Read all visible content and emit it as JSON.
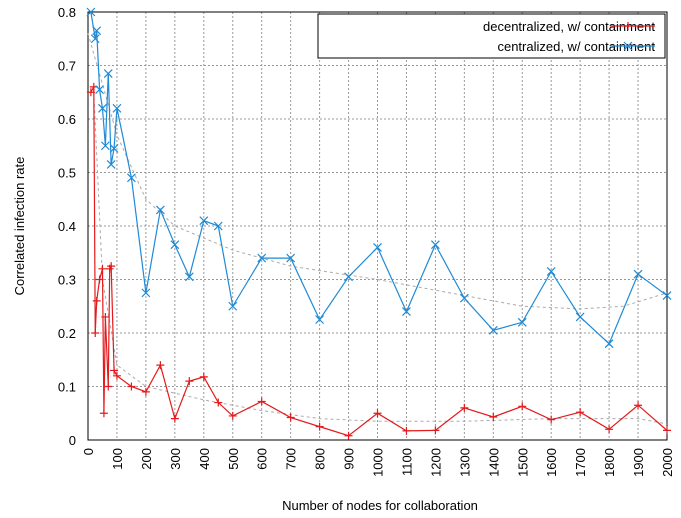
{
  "chart_data": {
    "type": "line",
    "xlabel": "Number of nodes for collaboration",
    "ylabel": "Correlated infection rate",
    "xlim": [
      0,
      2000
    ],
    "xticks": [
      0,
      100,
      200,
      300,
      400,
      500,
      600,
      700,
      800,
      900,
      1000,
      1100,
      1200,
      1300,
      1400,
      1500,
      1600,
      1700,
      1800,
      1900,
      2000
    ],
    "ylim": [
      0,
      0.8
    ],
    "yticks": [
      0,
      0.1,
      0.2,
      0.3,
      0.4,
      0.5,
      0.6,
      0.7,
      0.8
    ],
    "grid": true,
    "legend": "upper right",
    "series": [
      {
        "name": "decentralized, w/ containment",
        "color": "#e41a1c",
        "marker": "+",
        "x": [
          10,
          20,
          25,
          30,
          40,
          50,
          55,
          60,
          70,
          75,
          80,
          90,
          100,
          150,
          200,
          250,
          300,
          350,
          400,
          450,
          500,
          600,
          700,
          800,
          900,
          1000,
          1100,
          1200,
          1300,
          1400,
          1500,
          1600,
          1700,
          1800,
          1900,
          2000
        ],
        "values": [
          0.65,
          0.66,
          0.2,
          0.26,
          0.3,
          0.32,
          0.05,
          0.23,
          0.1,
          0.32,
          0.325,
          0.13,
          0.12,
          0.1,
          0.09,
          0.14,
          0.04,
          0.11,
          0.118,
          0.07,
          0.045,
          0.072,
          0.042,
          0.025,
          0.008,
          0.05,
          0.017,
          0.018,
          0.06,
          0.043,
          0.063,
          0.038,
          0.052,
          0.02,
          0.065,
          0.018
        ]
      },
      {
        "name": "centralized, w/ containment",
        "color": "#1f8ad6",
        "marker": "x",
        "x": [
          10,
          25,
          30,
          40,
          50,
          60,
          70,
          80,
          90,
          100,
          150,
          200,
          250,
          300,
          350,
          400,
          450,
          500,
          600,
          700,
          800,
          900,
          1000,
          1100,
          1200,
          1300,
          1400,
          1500,
          1600,
          1700,
          1800,
          1900,
          2000
        ],
        "values": [
          0.8,
          0.75,
          0.765,
          0.655,
          0.62,
          0.55,
          0.685,
          0.515,
          0.545,
          0.62,
          0.49,
          0.275,
          0.43,
          0.365,
          0.305,
          0.41,
          0.4,
          0.25,
          0.34,
          0.34,
          0.225,
          0.305,
          0.36,
          0.24,
          0.365,
          0.265,
          0.205,
          0.22,
          0.315,
          0.23,
          0.18,
          0.31,
          0.27
        ]
      }
    ],
    "trendlines": [
      {
        "color": "#aaaaaa",
        "x": [
          20,
          50,
          100,
          200,
          400,
          600,
          800,
          1000,
          1300,
          1600,
          1900,
          2000
        ],
        "values": [
          0.65,
          0.3,
          0.14,
          0.1,
          0.075,
          0.055,
          0.04,
          0.035,
          0.035,
          0.04,
          0.04,
          0.03
        ]
      },
      {
        "color": "#aaaaaa",
        "x": [
          0,
          100,
          200,
          300,
          500,
          700,
          1000,
          1300,
          1500,
          1700,
          1850,
          2000
        ],
        "values": [
          0.76,
          0.57,
          0.45,
          0.4,
          0.355,
          0.325,
          0.3,
          0.27,
          0.25,
          0.245,
          0.25,
          0.275
        ]
      }
    ]
  }
}
